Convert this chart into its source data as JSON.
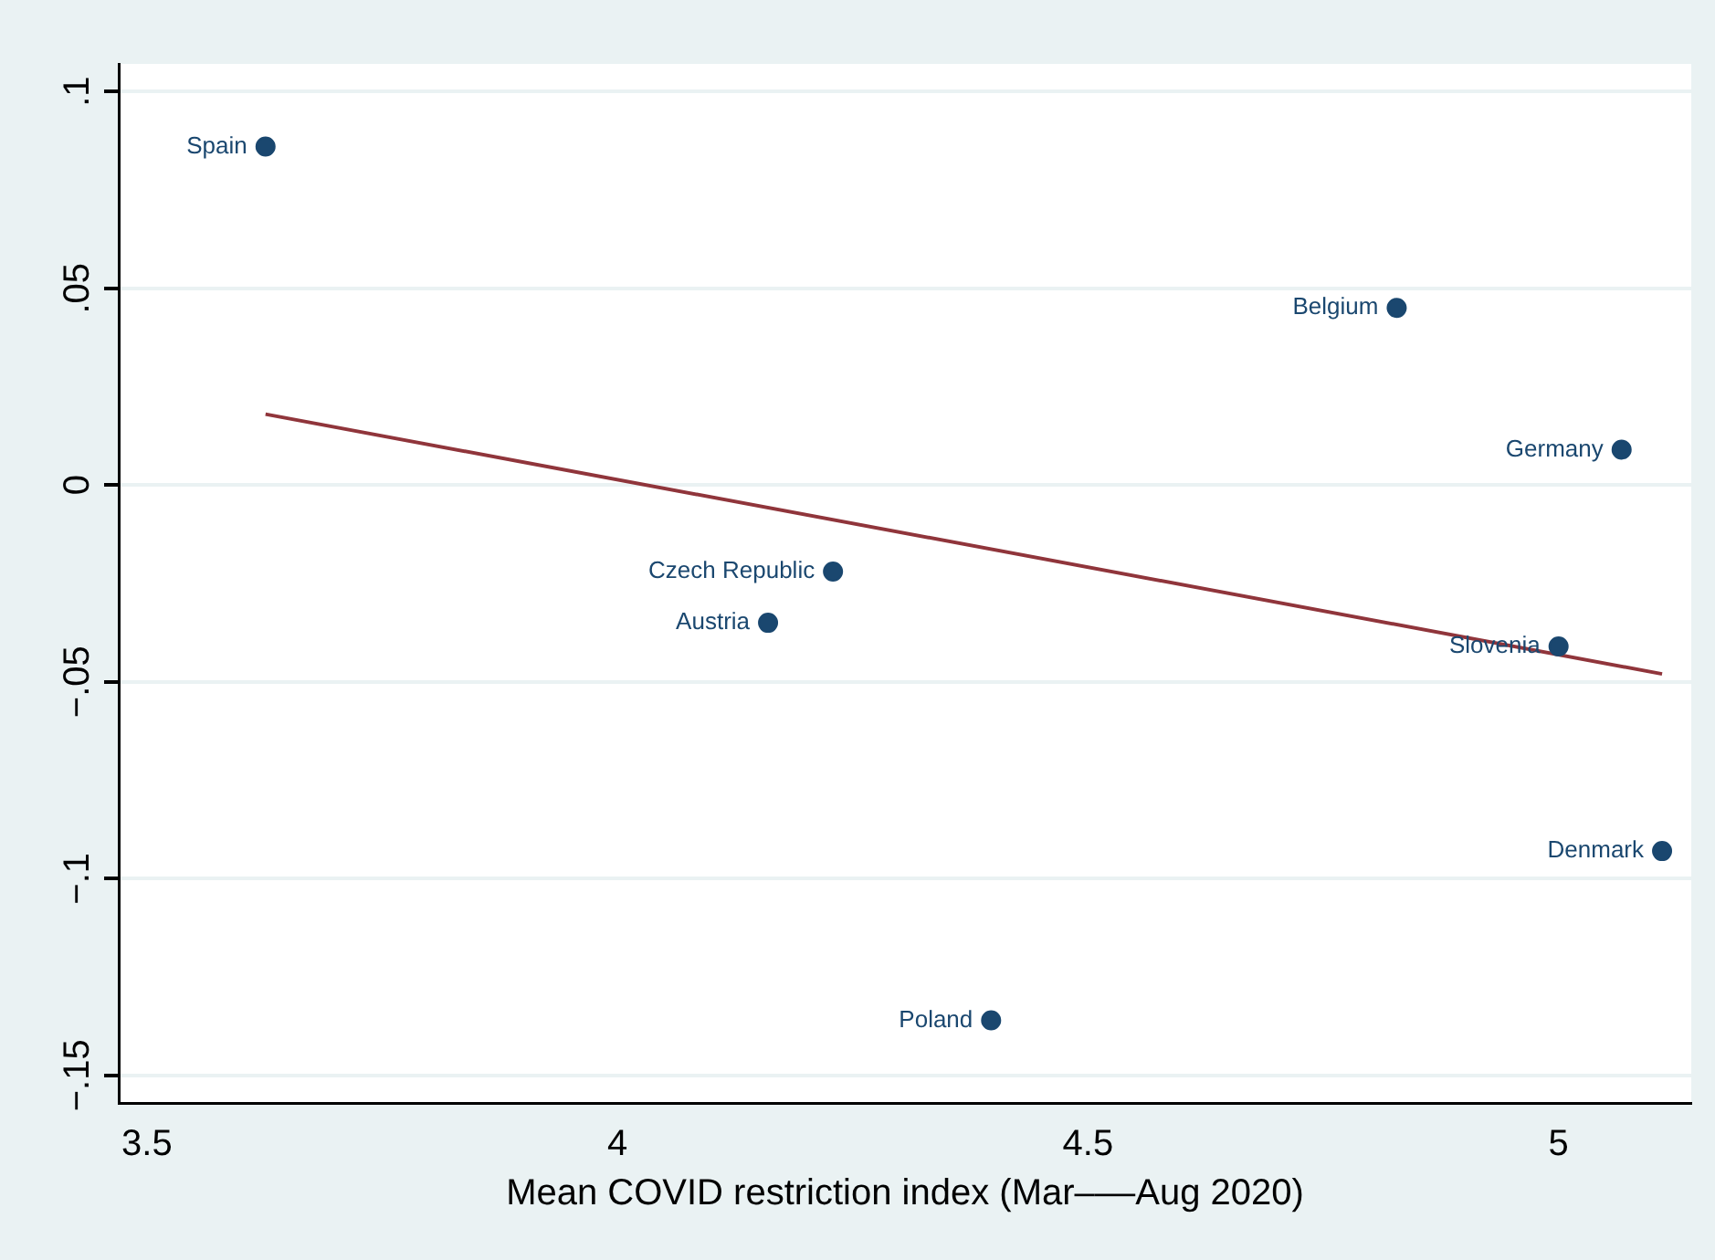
{
  "chart_data": {
    "type": "scatter",
    "xlabel": "Mean COVID restriction index (Mar–––Aug 2020)",
    "xlim": [
      3.47,
      5.141
    ],
    "xticks": [
      3.5,
      4,
      4.5,
      5
    ],
    "ylim": [
      -0.157,
      0.107
    ],
    "yticks": [
      {
        "value": -0.15,
        "label": "−.15"
      },
      {
        "value": -0.1,
        "label": "−.1"
      },
      {
        "value": -0.05,
        "label": "−.05"
      },
      0,
      {
        "value": 0.05,
        "label": ".05"
      },
      {
        "value": 0.1,
        "label": ".1"
      }
    ],
    "grid": "y",
    "legend": false,
    "series": [
      {
        "marker": "circle",
        "color": "#1a476f",
        "x": [
          3.626,
          4.828,
          5.067,
          4.229,
          4.16,
          5.0,
          5.11,
          4.397
        ],
        "values": [
          0.086,
          0.045,
          0.009,
          -0.022,
          -0.035,
          -0.041,
          -0.093,
          -0.136
        ]
      },
      {
        "type": "line",
        "marker": "none",
        "color": "#90353b",
        "x": [
          3.626,
          5.11
        ],
        "values": [
          0.018,
          -0.048
        ]
      }
    ],
    "annotations": [
      {
        "text": "Spain",
        "x": 3.626,
        "y": 0.086
      },
      {
        "text": "Belgium",
        "x": 4.828,
        "y": 0.045
      },
      {
        "text": "Germany",
        "x": 5.067,
        "y": 0.009
      },
      {
        "text": "Czech Republic",
        "x": 4.229,
        "y": -0.022
      },
      {
        "text": "Austria",
        "x": 4.16,
        "y": -0.035
      },
      {
        "text": "Slovenia",
        "x": 5.0,
        "y": -0.041
      },
      {
        "text": "Denmark",
        "x": 5.11,
        "y": -0.093
      },
      {
        "text": "Poland",
        "x": 4.397,
        "y": -0.136
      }
    ]
  }
}
